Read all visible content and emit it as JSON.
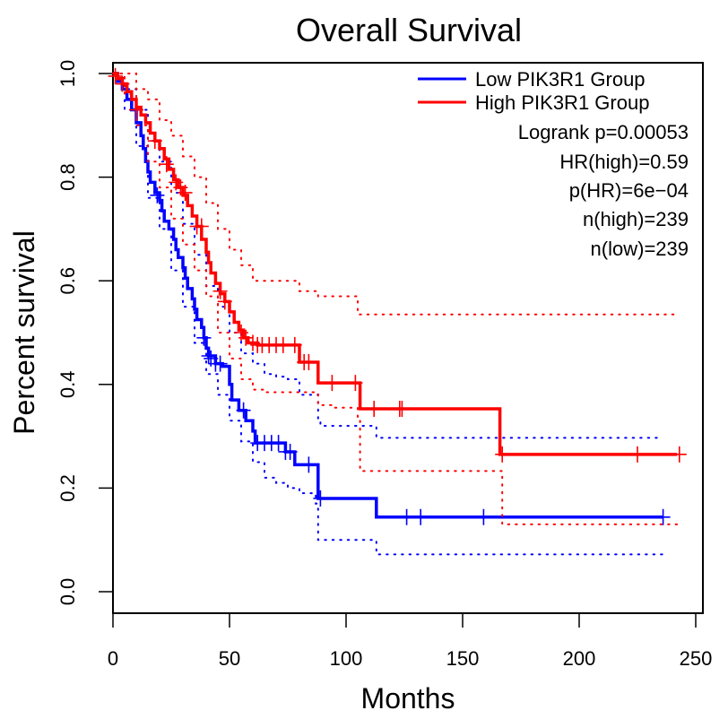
{
  "chart_data": {
    "type": "line",
    "subtype": "kaplan-meier",
    "title": "Overall Survival",
    "xlabel": "Months",
    "ylabel": "Percent survival",
    "xlim": [
      0,
      250
    ],
    "ylim": [
      0,
      1.0
    ],
    "x_ticks": [
      0,
      50,
      100,
      150,
      200,
      250
    ],
    "x_tick_labels": [
      "0",
      "50",
      "100",
      "150",
      "200",
      "250"
    ],
    "y_ticks": [
      0.0,
      0.2,
      0.4,
      0.6,
      0.8,
      1.0
    ],
    "y_tick_labels": [
      "0.0",
      "0.2",
      "0.4",
      "0.6",
      "0.8",
      "1.0"
    ],
    "grid": false,
    "legend_position": "top-right",
    "legend": [
      {
        "label": "Low PIK3R1 Group",
        "color": "#0000ff"
      },
      {
        "label": "High PIK3R1 Group",
        "color": "#ff0000"
      }
    ],
    "annotations": [
      "Logrank p=0.00053",
      "HR(high)=0.59",
      "p(HR)=6e−04",
      "n(high)=239",
      "n(low)=239"
    ],
    "series": [
      {
        "name": "Low PIK3R1 Group",
        "color": "#0000ff",
        "steps": [
          [
            0,
            1.0
          ],
          [
            2,
            0.985
          ],
          [
            4,
            0.97
          ],
          [
            6,
            0.95
          ],
          [
            8,
            0.93
          ],
          [
            10,
            0.905
          ],
          [
            12,
            0.88
          ],
          [
            13,
            0.855
          ],
          [
            14,
            0.83
          ],
          [
            15,
            0.81
          ],
          [
            16,
            0.79
          ],
          [
            18,
            0.77
          ],
          [
            20,
            0.755
          ],
          [
            21,
            0.735
          ],
          [
            22,
            0.715
          ],
          [
            24,
            0.7
          ],
          [
            26,
            0.68
          ],
          [
            27,
            0.66
          ],
          [
            28,
            0.645
          ],
          [
            30,
            0.625
          ],
          [
            31,
            0.605
          ],
          [
            32,
            0.585
          ],
          [
            34,
            0.565
          ],
          [
            35,
            0.545
          ],
          [
            36,
            0.525
          ],
          [
            38,
            0.51
          ],
          [
            39,
            0.49
          ],
          [
            40,
            0.47
          ],
          [
            41,
            0.455
          ],
          [
            44,
            0.44
          ],
          [
            47,
            0.435
          ],
          [
            50,
            0.4
          ],
          [
            51,
            0.37
          ],
          [
            54,
            0.35
          ],
          [
            57,
            0.33
          ],
          [
            60,
            0.31
          ],
          [
            61,
            0.287
          ],
          [
            74,
            0.27
          ],
          [
            78,
            0.245
          ],
          [
            88,
            0.18
          ],
          [
            113,
            0.144
          ],
          [
            236,
            0.144
          ]
        ],
        "censor_times": [
          [
            19,
            0.765
          ],
          [
            39,
            0.49
          ],
          [
            41,
            0.455
          ],
          [
            42,
            0.45
          ],
          [
            44,
            0.44
          ],
          [
            46,
            0.44
          ],
          [
            56,
            0.35
          ],
          [
            62,
            0.287
          ],
          [
            65,
            0.287
          ],
          [
            68,
            0.287
          ],
          [
            71,
            0.287
          ],
          [
            74,
            0.27
          ],
          [
            76,
            0.27
          ],
          [
            84,
            0.245
          ],
          [
            89,
            0.18
          ],
          [
            126,
            0.144
          ],
          [
            132,
            0.144
          ],
          [
            159,
            0.144
          ],
          [
            236,
            0.144
          ]
        ],
        "ci_upper": [
          [
            0,
            1.0
          ],
          [
            5,
            0.97
          ],
          [
            10,
            0.93
          ],
          [
            15,
            0.87
          ],
          [
            20,
            0.83
          ],
          [
            25,
            0.77
          ],
          [
            30,
            0.71
          ],
          [
            35,
            0.65
          ],
          [
            40,
            0.59
          ],
          [
            45,
            0.55
          ],
          [
            50,
            0.5
          ],
          [
            55,
            0.46
          ],
          [
            60,
            0.44
          ],
          [
            65,
            0.42
          ],
          [
            70,
            0.415
          ],
          [
            75,
            0.41
          ],
          [
            80,
            0.38
          ],
          [
            88,
            0.33
          ],
          [
            89,
            0.32
          ],
          [
            100,
            0.32
          ],
          [
            113,
            0.297
          ],
          [
            236,
            0.297
          ]
        ],
        "ci_lower": [
          [
            0,
            1.0
          ],
          [
            5,
            0.93
          ],
          [
            10,
            0.86
          ],
          [
            15,
            0.76
          ],
          [
            20,
            0.7
          ],
          [
            25,
            0.62
          ],
          [
            30,
            0.55
          ],
          [
            35,
            0.48
          ],
          [
            40,
            0.42
          ],
          [
            45,
            0.38
          ],
          [
            50,
            0.33
          ],
          [
            55,
            0.29
          ],
          [
            60,
            0.25
          ],
          [
            65,
            0.22
          ],
          [
            70,
            0.21
          ],
          [
            75,
            0.2
          ],
          [
            80,
            0.19
          ],
          [
            87,
            0.17
          ],
          [
            88,
            0.1
          ],
          [
            113,
            0.072
          ],
          [
            236,
            0.072
          ]
        ]
      },
      {
        "name": "High PIK3R1 Group",
        "color": "#ff0000",
        "steps": [
          [
            0,
            1.0
          ],
          [
            2,
            0.99
          ],
          [
            4,
            0.98
          ],
          [
            6,
            0.965
          ],
          [
            8,
            0.95
          ],
          [
            10,
            0.935
          ],
          [
            12,
            0.92
          ],
          [
            14,
            0.905
          ],
          [
            16,
            0.885
          ],
          [
            18,
            0.87
          ],
          [
            20,
            0.855
          ],
          [
            22,
            0.835
          ],
          [
            24,
            0.815
          ],
          [
            26,
            0.795
          ],
          [
            28,
            0.78
          ],
          [
            30,
            0.765
          ],
          [
            32,
            0.745
          ],
          [
            34,
            0.725
          ],
          [
            36,
            0.705
          ],
          [
            38,
            0.68
          ],
          [
            40,
            0.655
          ],
          [
            41,
            0.635
          ],
          [
            42,
            0.615
          ],
          [
            44,
            0.595
          ],
          [
            46,
            0.575
          ],
          [
            48,
            0.56
          ],
          [
            50,
            0.54
          ],
          [
            52,
            0.52
          ],
          [
            54,
            0.505
          ],
          [
            56,
            0.49
          ],
          [
            58,
            0.48
          ],
          [
            62,
            0.476
          ],
          [
            80,
            0.443
          ],
          [
            88,
            0.403
          ],
          [
            106,
            0.353
          ],
          [
            166,
            0.265
          ],
          [
            242,
            0.265
          ]
        ],
        "censor_times": [
          [
            1,
            0.995
          ],
          [
            4,
            0.98
          ],
          [
            10,
            0.93
          ],
          [
            18,
            0.87
          ],
          [
            23,
            0.825
          ],
          [
            27,
            0.79
          ],
          [
            29,
            0.78
          ],
          [
            31,
            0.77
          ],
          [
            36,
            0.705
          ],
          [
            38,
            0.705
          ],
          [
            46,
            0.58
          ],
          [
            48,
            0.56
          ],
          [
            55,
            0.5
          ],
          [
            57,
            0.49
          ],
          [
            60,
            0.48
          ],
          [
            62,
            0.476
          ],
          [
            64,
            0.476
          ],
          [
            67,
            0.476
          ],
          [
            70,
            0.476
          ],
          [
            73,
            0.476
          ],
          [
            78,
            0.476
          ],
          [
            82,
            0.443
          ],
          [
            84,
            0.443
          ],
          [
            94,
            0.403
          ],
          [
            104,
            0.403
          ],
          [
            112,
            0.353
          ],
          [
            123,
            0.353
          ],
          [
            124,
            0.353
          ],
          [
            167,
            0.265
          ],
          [
            225,
            0.265
          ],
          [
            243,
            0.265
          ]
        ],
        "ci_upper": [
          [
            0,
            1.0
          ],
          [
            5,
            1.0
          ],
          [
            10,
            0.97
          ],
          [
            15,
            0.95
          ],
          [
            20,
            0.91
          ],
          [
            25,
            0.88
          ],
          [
            30,
            0.84
          ],
          [
            35,
            0.8
          ],
          [
            40,
            0.75
          ],
          [
            45,
            0.7
          ],
          [
            50,
            0.66
          ],
          [
            55,
            0.63
          ],
          [
            60,
            0.6
          ],
          [
            65,
            0.6
          ],
          [
            75,
            0.6
          ],
          [
            80,
            0.58
          ],
          [
            88,
            0.57
          ],
          [
            105,
            0.535
          ],
          [
            242,
            0.535
          ]
        ],
        "ci_lower": [
          [
            0,
            1.0
          ],
          [
            5,
            0.96
          ],
          [
            10,
            0.9
          ],
          [
            15,
            0.83
          ],
          [
            20,
            0.78
          ],
          [
            25,
            0.72
          ],
          [
            30,
            0.67
          ],
          [
            35,
            0.62
          ],
          [
            40,
            0.57
          ],
          [
            45,
            0.5
          ],
          [
            50,
            0.45
          ],
          [
            55,
            0.41
          ],
          [
            60,
            0.39
          ],
          [
            65,
            0.385
          ],
          [
            78,
            0.385
          ],
          [
            88,
            0.36
          ],
          [
            95,
            0.355
          ],
          [
            105,
            0.33
          ],
          [
            106,
            0.233
          ],
          [
            166,
            0.233
          ],
          [
            167,
            0.13
          ],
          [
            242,
            0.13
          ]
        ]
      }
    ]
  }
}
